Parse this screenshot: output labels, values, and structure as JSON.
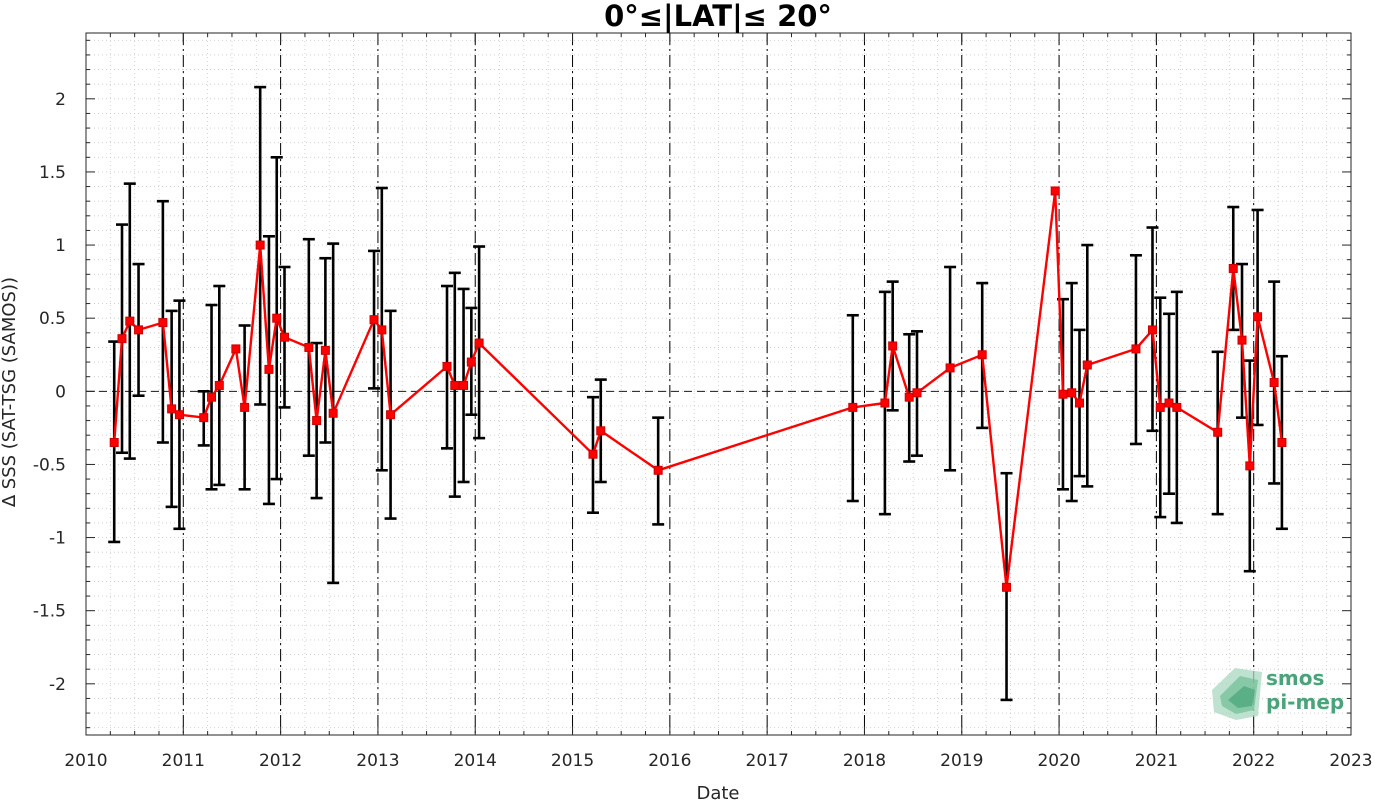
{
  "chart_data": {
    "type": "line",
    "title": "0°≤|LAT|≤ 20°",
    "xlabel": "Date",
    "ylabel": "∆ SSS (SAT-TSG (SAMOS))",
    "xlim": [
      2010,
      2023
    ],
    "ylim": [
      -2.35,
      2.45
    ],
    "x_ticks": [
      "2010",
      "2011",
      "2012",
      "2013",
      "2014",
      "2015",
      "2016",
      "2017",
      "2018",
      "2019",
      "2020",
      "2021",
      "2022",
      "2023"
    ],
    "y_ticks": [
      "2",
      "1.5",
      "1",
      "0.5",
      "0",
      "-0.5",
      "-1",
      "-1.5",
      "-2"
    ],
    "y_tick_values": [
      2,
      1.5,
      1,
      0.5,
      0,
      -0.5,
      -1,
      -1.5,
      -2
    ],
    "year_dividers": [
      2011,
      2012,
      2013,
      2014,
      2015,
      2016,
      2017,
      2018,
      2019,
      2020,
      2021,
      2022
    ],
    "grid": "minor dotted",
    "zero_line": "dashed",
    "series": [
      {
        "color": "#ff0000",
        "errorbar_color": "#000000",
        "points": [
          {
            "x": 2010.29,
            "y": -0.35,
            "lo": -1.03,
            "hi": 0.34
          },
          {
            "x": 2010.37,
            "y": 0.36,
            "lo": -0.42,
            "hi": 1.14
          },
          {
            "x": 2010.45,
            "y": 0.48,
            "lo": -0.46,
            "hi": 1.42
          },
          {
            "x": 2010.54,
            "y": 0.42,
            "lo": -0.03,
            "hi": 0.87
          },
          {
            "x": 2010.79,
            "y": 0.47,
            "lo": -0.35,
            "hi": 1.3
          },
          {
            "x": 2010.88,
            "y": -0.12,
            "lo": -0.79,
            "hi": 0.55
          },
          {
            "x": 2010.96,
            "y": -0.16,
            "lo": -0.94,
            "hi": 0.62
          },
          {
            "x": 2011.21,
            "y": -0.18,
            "lo": -0.37,
            "hi": 0.0
          },
          {
            "x": 2011.29,
            "y": -0.04,
            "lo": -0.67,
            "hi": 0.59
          },
          {
            "x": 2011.37,
            "y": 0.04,
            "lo": -0.64,
            "hi": 0.72
          },
          {
            "x": 2011.54,
            "y": 0.29,
            "lo": 0.29,
            "hi": 0.29
          },
          {
            "x": 2011.63,
            "y": -0.11,
            "lo": -0.67,
            "hi": 0.45
          },
          {
            "x": 2011.79,
            "y": 1.0,
            "lo": -0.09,
            "hi": 2.08
          },
          {
            "x": 2011.88,
            "y": 0.15,
            "lo": -0.77,
            "hi": 1.06
          },
          {
            "x": 2011.96,
            "y": 0.5,
            "lo": -0.6,
            "hi": 1.6
          },
          {
            "x": 2012.04,
            "y": 0.37,
            "lo": -0.11,
            "hi": 0.85
          },
          {
            "x": 2012.29,
            "y": 0.3,
            "lo": -0.44,
            "hi": 1.04
          },
          {
            "x": 2012.37,
            "y": -0.2,
            "lo": -0.73,
            "hi": 0.33
          },
          {
            "x": 2012.46,
            "y": 0.28,
            "lo": -0.35,
            "hi": 0.91
          },
          {
            "x": 2012.54,
            "y": -0.15,
            "lo": -1.31,
            "hi": 1.01
          },
          {
            "x": 2012.96,
            "y": 0.49,
            "lo": 0.02,
            "hi": 0.96
          },
          {
            "x": 2013.04,
            "y": 0.42,
            "lo": -0.54,
            "hi": 1.39
          },
          {
            "x": 2013.13,
            "y": -0.16,
            "lo": -0.87,
            "hi": 0.55
          },
          {
            "x": 2013.71,
            "y": 0.17,
            "lo": -0.39,
            "hi": 0.72
          },
          {
            "x": 2013.79,
            "y": 0.04,
            "lo": -0.72,
            "hi": 0.81
          },
          {
            "x": 2013.88,
            "y": 0.04,
            "lo": -0.62,
            "hi": 0.7
          },
          {
            "x": 2013.96,
            "y": 0.2,
            "lo": -0.16,
            "hi": 0.57
          },
          {
            "x": 2014.04,
            "y": 0.33,
            "lo": -0.32,
            "hi": 0.99
          },
          {
            "x": 2015.21,
            "y": -0.43,
            "lo": -0.83,
            "hi": -0.04
          },
          {
            "x": 2015.29,
            "y": -0.27,
            "lo": -0.62,
            "hi": 0.08
          },
          {
            "x": 2015.88,
            "y": -0.54,
            "lo": -0.91,
            "hi": -0.18
          },
          {
            "x": 2017.88,
            "y": -0.11,
            "lo": -0.75,
            "hi": 0.52
          },
          {
            "x": 2018.21,
            "y": -0.08,
            "lo": -0.84,
            "hi": 0.68
          },
          {
            "x": 2018.29,
            "y": 0.31,
            "lo": -0.13,
            "hi": 0.75
          },
          {
            "x": 2018.46,
            "y": -0.04,
            "lo": -0.48,
            "hi": 0.39
          },
          {
            "x": 2018.54,
            "y": -0.01,
            "lo": -0.44,
            "hi": 0.41
          },
          {
            "x": 2018.88,
            "y": 0.16,
            "lo": -0.54,
            "hi": 0.85
          },
          {
            "x": 2019.21,
            "y": 0.25,
            "lo": -0.25,
            "hi": 0.74
          },
          {
            "x": 2019.46,
            "y": -1.34,
            "lo": -2.11,
            "hi": -0.56
          },
          {
            "x": 2019.96,
            "y": 1.37,
            "lo": 1.37,
            "hi": 1.37
          },
          {
            "x": 2020.04,
            "y": -0.02,
            "lo": -0.67,
            "hi": 0.63
          },
          {
            "x": 2020.13,
            "y": -0.01,
            "lo": -0.75,
            "hi": 0.74
          },
          {
            "x": 2020.21,
            "y": -0.08,
            "lo": -0.58,
            "hi": 0.42
          },
          {
            "x": 2020.29,
            "y": 0.18,
            "lo": -0.65,
            "hi": 1.0
          },
          {
            "x": 2020.79,
            "y": 0.29,
            "lo": -0.36,
            "hi": 0.93
          },
          {
            "x": 2020.96,
            "y": 0.42,
            "lo": -0.27,
            "hi": 1.12
          },
          {
            "x": 2021.04,
            "y": -0.11,
            "lo": -0.86,
            "hi": 0.64
          },
          {
            "x": 2021.13,
            "y": -0.08,
            "lo": -0.7,
            "hi": 0.53
          },
          {
            "x": 2021.21,
            "y": -0.11,
            "lo": -0.9,
            "hi": 0.68
          },
          {
            "x": 2021.63,
            "y": -0.28,
            "lo": -0.84,
            "hi": 0.27
          },
          {
            "x": 2021.79,
            "y": 0.84,
            "lo": 0.42,
            "hi": 1.26
          },
          {
            "x": 2021.88,
            "y": 0.35,
            "lo": -0.18,
            "hi": 0.87
          },
          {
            "x": 2021.96,
            "y": -0.51,
            "lo": -1.23,
            "hi": 0.21
          },
          {
            "x": 2022.04,
            "y": 0.51,
            "lo": -0.23,
            "hi": 1.24
          },
          {
            "x": 2022.21,
            "y": 0.06,
            "lo": -0.63,
            "hi": 0.75
          },
          {
            "x": 2022.29,
            "y": -0.35,
            "lo": -0.94,
            "hi": 0.24
          }
        ]
      }
    ]
  },
  "logo": {
    "line1": "smos",
    "line2": "pi-mep",
    "color": "#4aa37a"
  }
}
